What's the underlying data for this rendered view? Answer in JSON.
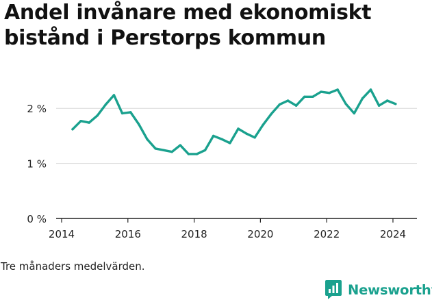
{
  "title_lines": [
    "Andel invånare med ekonomiskt",
    "bistånd i Perstorps kommun"
  ],
  "note": "Tre månaders medelvärden.",
  "brand": "Newsworthy",
  "colors": {
    "line": "#1aa18e",
    "grid": "#d8d8d8",
    "axis": "#222222",
    "brand": "#1aa18e"
  },
  "chart_data": {
    "type": "line",
    "title": "Andel invånare med ekonomiskt bistånd i Perstorps kommun",
    "xlabel": "",
    "ylabel": "",
    "xlim": [
      2014,
      2024.6
    ],
    "ylim": [
      0,
      2.6
    ],
    "x_ticks": [
      2014,
      2016,
      2018,
      2020,
      2022,
      2024
    ],
    "y_ticks": [
      {
        "value": 0,
        "label": "0 %"
      },
      {
        "value": 1,
        "label": "1 %"
      },
      {
        "value": 2,
        "label": "2 %"
      }
    ],
    "grid": true,
    "series": [
      {
        "name": "",
        "x": [
          2014.33,
          2014.58,
          2014.83,
          2015.08,
          2015.33,
          2015.58,
          2015.83,
          2016.08,
          2016.33,
          2016.58,
          2016.83,
          2017.08,
          2017.33,
          2017.58,
          2017.83,
          2018.08,
          2018.33,
          2018.58,
          2018.83,
          2019.08,
          2019.33,
          2019.58,
          2019.83,
          2020.08,
          2020.33,
          2020.58,
          2020.83,
          2021.08,
          2021.33,
          2021.58,
          2021.83,
          2022.08,
          2022.33,
          2022.58,
          2022.83,
          2023.08,
          2023.33,
          2023.58,
          2023.83,
          2024.08
        ],
        "values": [
          1.62,
          1.77,
          1.74,
          1.87,
          2.07,
          2.24,
          1.91,
          1.93,
          1.71,
          1.44,
          1.27,
          1.24,
          1.21,
          1.33,
          1.17,
          1.17,
          1.24,
          1.5,
          1.44,
          1.37,
          1.63,
          1.54,
          1.47,
          1.7,
          1.9,
          2.07,
          2.14,
          2.05,
          2.21,
          2.21,
          2.3,
          2.28,
          2.34,
          2.08,
          1.91,
          2.18,
          2.34,
          2.05,
          2.14,
          2.08
        ]
      }
    ]
  }
}
